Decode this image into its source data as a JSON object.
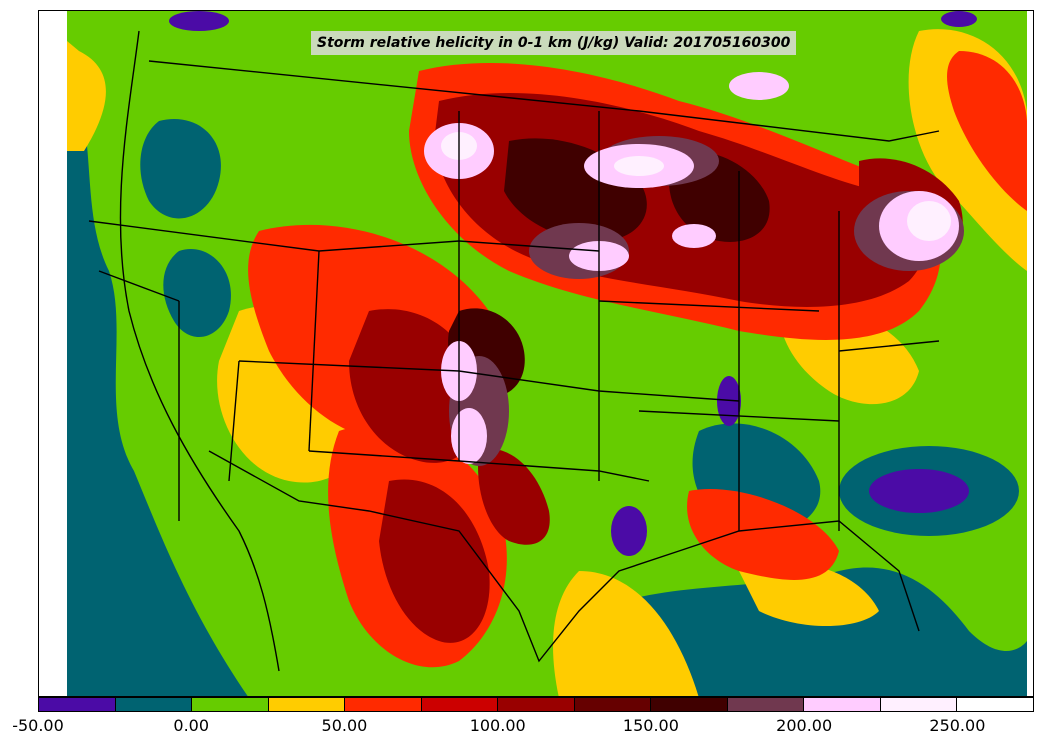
{
  "title": "Storm relative helicity in 0-1 km (J/kg) Valid: 201705160300",
  "colorbar": {
    "levels": [
      -50,
      -25,
      0,
      25,
      50,
      75,
      100,
      125,
      150,
      175,
      200,
      225,
      250,
      275
    ],
    "colors": [
      "#4b0ba6",
      "#006371",
      "#66cc00",
      "#ffcc00",
      "#ff2a00",
      "#cc0000",
      "#990000",
      "#660000",
      "#400000",
      "#70384f",
      "#ffccff",
      "#fff0ff",
      "#ffffff"
    ],
    "tick_labels": [
      "-50.00",
      "0.00",
      "50.00",
      "100.00",
      "150.00",
      "200.00",
      "250.00"
    ]
  }
}
